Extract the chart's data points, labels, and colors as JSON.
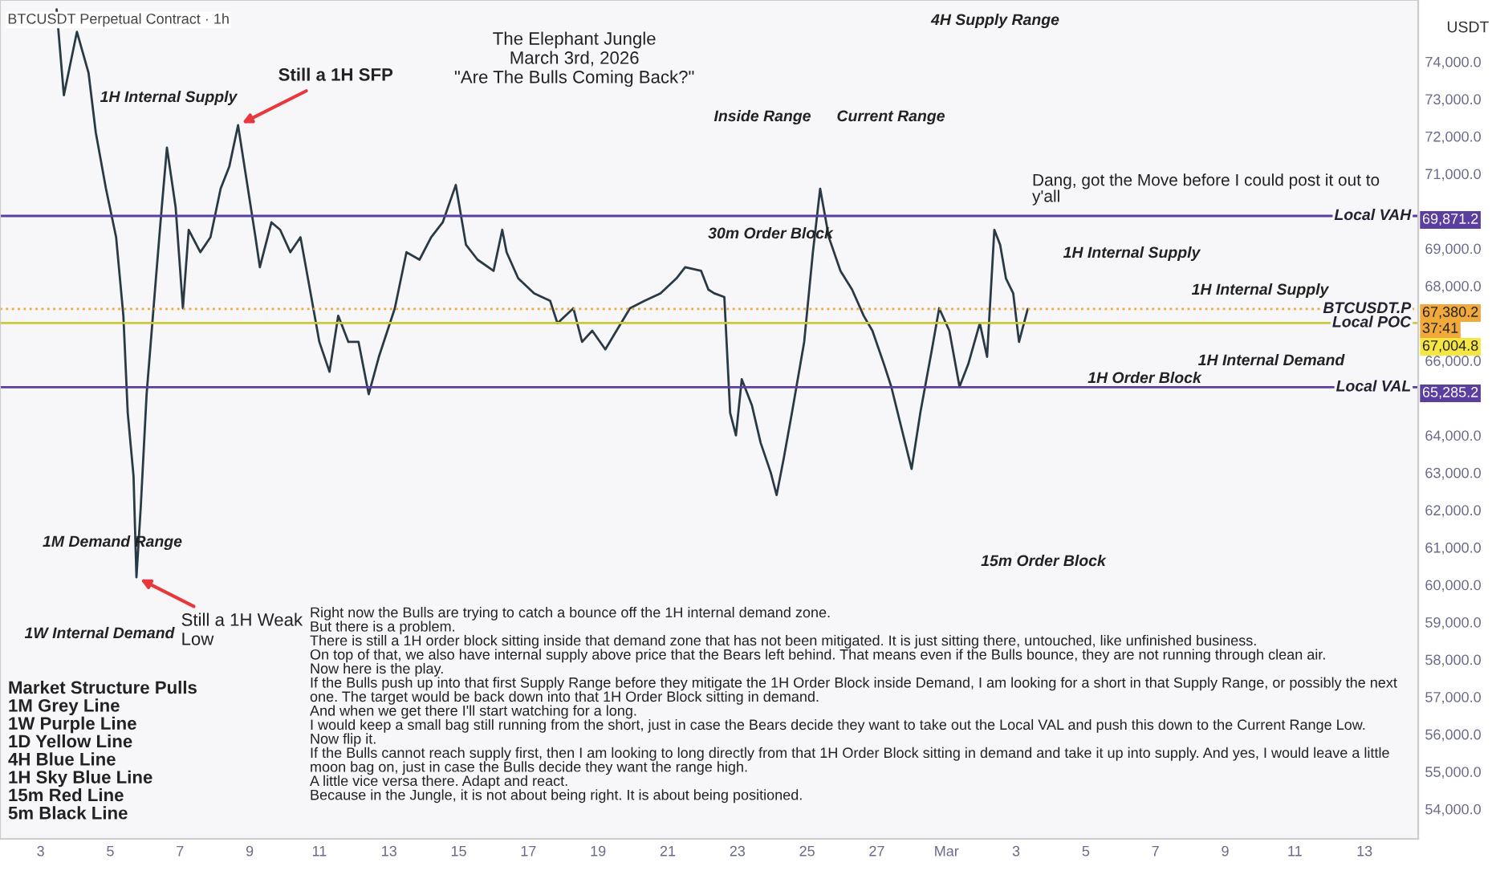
{
  "chart_data": {
    "type": "line",
    "title": "The Elephant Jungle\nMarch 3rd, 2026\n\"Are The Bulls Coming Back?\"",
    "subtitle": "BTCUSDT Perpetual Contract · 1h",
    "ylabel": "USDT",
    "x": [
      "2026-02-03T11:00",
      "2026-02-03T16:00",
      "2026-02-04T01:00",
      "2026-02-04T09:00",
      "2026-02-04T14:00",
      "2026-02-04T21:00",
      "2026-02-05T04:00",
      "2026-02-05T09:00",
      "2026-02-05T12:00",
      "2026-02-05T16:00",
      "2026-02-05T18:00",
      "2026-02-05T21:00",
      "2026-02-06T01:00",
      "2026-02-06T07:00",
      "2026-02-06T11:00",
      "2026-02-06T15:00",
      "2026-02-06T21:00",
      "2026-02-07T02:00",
      "2026-02-07T06:00",
      "2026-02-07T14:00",
      "2026-02-07T21:00",
      "2026-02-08T04:00",
      "2026-02-08T10:00",
      "2026-02-08T16:00",
      "2026-02-08T22:00",
      "2026-02-09T04:00",
      "2026-02-09T07:00",
      "2026-02-09T15:00",
      "2026-02-09T21:00",
      "2026-02-10T04:00",
      "2026-02-10T11:00",
      "2026-02-10T18:00",
      "2026-02-11T00:00",
      "2026-02-11T07:00",
      "2026-02-11T13:00",
      "2026-02-11T20:00",
      "2026-02-12T03:00",
      "2026-02-12T10:00",
      "2026-02-12T17:00",
      "2026-02-13T04:00",
      "2026-02-13T12:00",
      "2026-02-13T21:00",
      "2026-02-14T05:00",
      "2026-02-14T13:00",
      "2026-02-14T22:00",
      "2026-02-15T05:00",
      "2026-02-15T13:00",
      "2026-02-16T00:00",
      "2026-02-16T06:00",
      "2026-02-16T09:00",
      "2026-02-16T17:00",
      "2026-02-17T04:00",
      "2026-02-17T15:00",
      "2026-02-17T20:00",
      "2026-02-18T07:00",
      "2026-02-18T13:00",
      "2026-02-18T20:00",
      "2026-02-19T05:00",
      "2026-02-19T22:00",
      "2026-02-20T08:00",
      "2026-02-20T19:00",
      "2026-02-21T06:00",
      "2026-02-21T12:00",
      "2026-02-21T23:00",
      "2026-02-22T04:00",
      "2026-02-22T08:00",
      "2026-02-22T15:00",
      "2026-02-22T19:00",
      "2026-02-22T23:00",
      "2026-02-23T03:00",
      "2026-02-23T10:00",
      "2026-02-23T16:00",
      "2026-02-23T23:00",
      "2026-02-24T03:00",
      "2026-02-24T08:00",
      "2026-02-24T14:00",
      "2026-02-24T22:00",
      "2026-02-25T04:00",
      "2026-02-25T09:00",
      "2026-02-25T15:00",
      "2026-02-25T23:00",
      "2026-02-26T07:00",
      "2026-02-26T15:00",
      "2026-02-26T21:00",
      "2026-02-27T05:00",
      "2026-02-27T10:00",
      "2026-02-27T17:00",
      "2026-02-28T00:00",
      "2026-02-28T06:00",
      "2026-02-28T14:00",
      "2026-02-28T19:00",
      "2026-03-01T02:00",
      "2026-03-01T09:00",
      "2026-03-01T15:00",
      "2026-03-01T23:00",
      "2026-03-02T04:00",
      "2026-03-02T09:00",
      "2026-03-02T13:00",
      "2026-03-02T17:00",
      "2026-03-02T22:00",
      "2026-03-03T02:00",
      "2026-03-03T08:00"
    ],
    "series": [
      {
        "color": "#2a3a45",
        "values": [
          75400,
          73100,
          74800,
          73700,
          72100,
          70600,
          69300,
          67200,
          64600,
          62900,
          60200,
          62100,
          65100,
          68000,
          69900,
          71700,
          70100,
          67400,
          69500,
          68900,
          69300,
          70600,
          71200,
          72300,
          70800,
          69300,
          68500,
          69700,
          69500,
          68900,
          69300,
          67800,
          66500,
          65700,
          67200,
          66500,
          66500,
          65100,
          66100,
          67400,
          68900,
          68700,
          69300,
          69700,
          70700,
          69100,
          68700,
          68400,
          69500,
          68900,
          68200,
          67800,
          67600,
          67000,
          67400,
          66500,
          66800,
          66300,
          67400,
          67600,
          67800,
          68200,
          68500,
          68400,
          67900,
          67800,
          67700,
          64600,
          64000,
          65500,
          64800,
          63800,
          63000,
          62400,
          63400,
          64700,
          66500,
          68900,
          70600,
          69300,
          68400,
          67900,
          67200,
          66800,
          65900,
          65300,
          64200,
          63100,
          64600,
          66300,
          67400,
          66800,
          65300,
          65900,
          67000,
          66100,
          69500,
          69100,
          68200,
          67800,
          66500,
          67380
        ]
      }
    ],
    "xlim": [
      "2026-02-01T20:00",
      "2026-03-14T13:00"
    ],
    "xticks": [
      {
        "value": "2026-02-03",
        "label": "3"
      },
      {
        "value": "2026-02-05",
        "label": "5"
      },
      {
        "value": "2026-02-07",
        "label": "7"
      },
      {
        "value": "2026-02-09",
        "label": "9"
      },
      {
        "value": "2026-02-11",
        "label": "11"
      },
      {
        "value": "2026-02-13",
        "label": "13"
      },
      {
        "value": "2026-02-15",
        "label": "15"
      },
      {
        "value": "2026-02-17",
        "label": "17"
      },
      {
        "value": "2026-02-19",
        "label": "19"
      },
      {
        "value": "2026-02-21",
        "label": "21"
      },
      {
        "value": "2026-02-23",
        "label": "23"
      },
      {
        "value": "2026-02-25",
        "label": "25"
      },
      {
        "value": "2026-02-27",
        "label": "27"
      },
      {
        "value": "2026-03-01",
        "label": "Mar"
      },
      {
        "value": "2026-03-03",
        "label": "3"
      },
      {
        "value": "2026-03-05",
        "label": "5"
      },
      {
        "value": "2026-03-07",
        "label": "7"
      },
      {
        "value": "2026-03-09",
        "label": "9"
      },
      {
        "value": "2026-03-11",
        "label": "11"
      },
      {
        "value": "2026-03-13",
        "label": "13"
      }
    ],
    "ylim": [
      53200,
      75650
    ],
    "yticks": [
      {
        "value": 54000,
        "label": "54,000.0"
      },
      {
        "value": 55000,
        "label": "55,000.0"
      },
      {
        "value": 56000,
        "label": "56,000.0"
      },
      {
        "value": 57000,
        "label": "57,000.0"
      },
      {
        "value": 58000,
        "label": "58,000.0"
      },
      {
        "value": 59000,
        "label": "59,000.0"
      },
      {
        "value": 60000,
        "label": "60,000.0"
      },
      {
        "value": 61000,
        "label": "61,000.0"
      },
      {
        "value": 62000,
        "label": "62,000.0"
      },
      {
        "value": 63000,
        "label": "63,000.0"
      },
      {
        "value": 64000,
        "label": "64,000.0"
      },
      {
        "value": 66000,
        "label": "66,000.0"
      },
      {
        "value": 68000,
        "label": "68,000.0"
      },
      {
        "value": 69000,
        "label": "69,000.0"
      },
      {
        "value": 71000,
        "label": "71,000.0"
      },
      {
        "value": 72000,
        "label": "72,000.0"
      },
      {
        "value": 73000,
        "label": "73,000.0"
      },
      {
        "value": 74000,
        "label": "74,000.0"
      }
    ],
    "ref_lines": [
      {
        "axis": "y",
        "value": 69871.2,
        "label": "Local VAH",
        "color": "#5b3fa0"
      },
      {
        "axis": "y",
        "value": 67380.2,
        "label": "BTCUSDT.P",
        "color": "#f2a93b",
        "line_style": "dotted"
      },
      {
        "axis": "y",
        "value": 67004.8,
        "label": "Local POC",
        "color": "#c9c93a"
      },
      {
        "axis": "y",
        "value": 65285.2,
        "label": "Local VAL",
        "color": "#5b3fa0"
      }
    ],
    "annotations": [
      {
        "text": "Still a 1H SFP",
        "x": "2026-02-08T16:00",
        "y": 72300
      },
      {
        "text": "Still a 1H Weak\nLow",
        "x": "2026-02-05T18:00",
        "y": 60200
      },
      "Dang, got the Move before I could post it out to\ny'all",
      "4H Supply Range",
      "1H Internal Supply",
      "Inside Range",
      "Current Range",
      "30m Order Block",
      "1H Internal Supply",
      "1H Internal Supply",
      "1H Internal Demand",
      "1H Order Block",
      "15m Order Block",
      "1M Demand Range",
      "1W Internal Demand",
      "69,871.2",
      "67,380.2",
      "37:41",
      "67,004.8",
      "65,285.2",
      "Market Structure Pulls\n1M Grey Line\n1W Purple Line\n1D Yellow Line\n4H Blue Line\n1H Sky Blue Line\n15m Red Line\n5m Black Line",
      "Right now the Bulls are trying to catch a bounce off the 1H internal demand zone.\nBut there is a problem.\nThere is still a 1H order block sitting inside that demand zone that has not been mitigated. It is just sitting there, untouched, like unfinished business.\nOn top of that, we also have internal supply above price that the Bears left behind. That means even if the Bulls bounce, they are not running through clean air.\nNow here is the play.\nIf the Bulls push up into that first Supply Range before they mitigate the 1H Order Block inside Demand, I am looking for a short in that Supply Range, or possibly the next\none. The target would be back down into that 1H Order Block sitting in demand.\nAnd when we get there I'll start watching for a long.\nI would keep a small bag still running from the short, just in case the Bears decide they want to take out the Local VAL and push this down to the Current Range Low.\nNow flip it.\nIf the Bulls cannot reach supply first, then I am looking to long directly from that 1H Order Block sitting in demand and take it up into supply. And yes, I would leave a little\nmoon bag on, just in case the Bulls decide they want the range high.\nA little vice versa there. Adapt and react.\nBecause in the Jungle, it is not about being right. It is about being positioned."
    ],
    "grid": false,
    "legend": false,
    "marker": "none",
    "line_style": "solid"
  }
}
